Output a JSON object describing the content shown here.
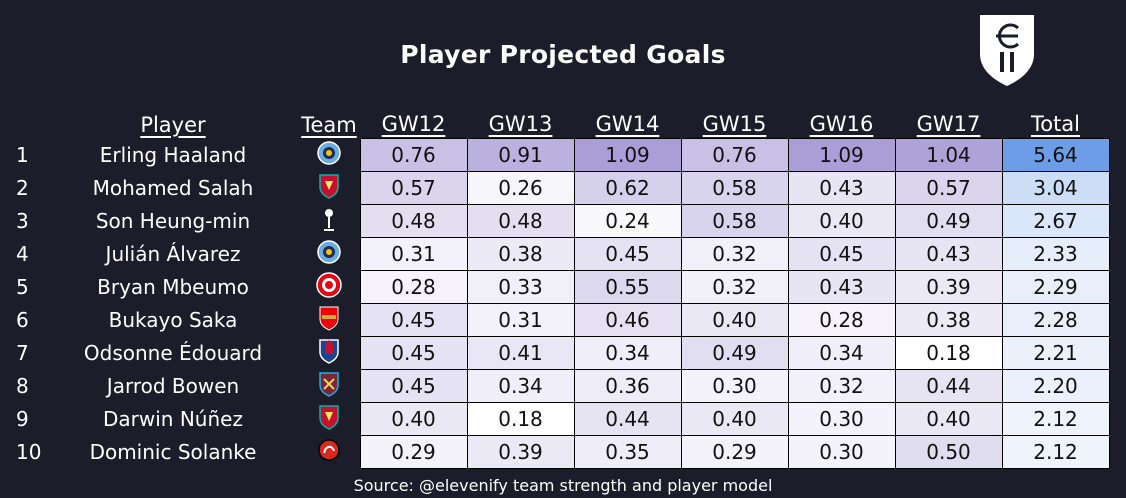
{
  "title": "Player Projected Goals",
  "source": "Source: @elevenify team strength and player model",
  "headers": {
    "player": "Player",
    "team": "Team",
    "gws": [
      "GW12",
      "GW13",
      "GW14",
      "GW15",
      "GW16",
      "GW17"
    ],
    "total": "Total"
  },
  "rows": [
    {
      "rank": "1",
      "name": "Erling Haaland",
      "team": "manchester-city-crest",
      "gw": [
        "0.76",
        "0.91",
        "1.09",
        "0.76",
        "1.09",
        "1.04"
      ],
      "total": "5.64"
    },
    {
      "rank": "2",
      "name": "Mohamed Salah",
      "team": "liverpool-crest",
      "gw": [
        "0.57",
        "0.26",
        "0.62",
        "0.58",
        "0.43",
        "0.57"
      ],
      "total": "3.04"
    },
    {
      "rank": "3",
      "name": "Son Heung-min",
      "team": "tottenham-crest",
      "gw": [
        "0.48",
        "0.48",
        "0.24",
        "0.58",
        "0.40",
        "0.49"
      ],
      "total": "2.67"
    },
    {
      "rank": "4",
      "name": "Julián Álvarez",
      "team": "manchester-city-crest",
      "gw": [
        "0.31",
        "0.38",
        "0.45",
        "0.32",
        "0.45",
        "0.43"
      ],
      "total": "2.33"
    },
    {
      "rank": "5",
      "name": "Bryan Mbeumo",
      "team": "brentford-crest",
      "gw": [
        "0.28",
        "0.33",
        "0.55",
        "0.32",
        "0.43",
        "0.39"
      ],
      "total": "2.29"
    },
    {
      "rank": "6",
      "name": "Bukayo Saka",
      "team": "arsenal-crest",
      "gw": [
        "0.45",
        "0.31",
        "0.46",
        "0.40",
        "0.28",
        "0.38"
      ],
      "total": "2.28"
    },
    {
      "rank": "7",
      "name": "Odsonne Édouard",
      "team": "crystal-palace-crest",
      "gw": [
        "0.45",
        "0.41",
        "0.34",
        "0.49",
        "0.34",
        "0.18"
      ],
      "total": "2.21"
    },
    {
      "rank": "8",
      "name": "Jarrod Bowen",
      "team": "west-ham-crest",
      "gw": [
        "0.45",
        "0.34",
        "0.36",
        "0.30",
        "0.32",
        "0.44"
      ],
      "total": "2.20"
    },
    {
      "rank": "9",
      "name": "Darwin Núñez",
      "team": "liverpool-crest",
      "gw": [
        "0.40",
        "0.18",
        "0.44",
        "0.40",
        "0.30",
        "0.40"
      ],
      "total": "2.12"
    },
    {
      "rank": "10",
      "name": "Dominic Solanke",
      "team": "bournemouth-crest",
      "gw": [
        "0.29",
        "0.39",
        "0.35",
        "0.29",
        "0.30",
        "0.50"
      ],
      "total": "2.12"
    }
  ],
  "colors": {
    "background": "#1c1d2b",
    "gw_scale_low": "#ffffff",
    "gw_scale_high": "#a99ed6",
    "total_scale_low": "#eef3fc",
    "total_scale_high": "#6d9de6"
  }
}
